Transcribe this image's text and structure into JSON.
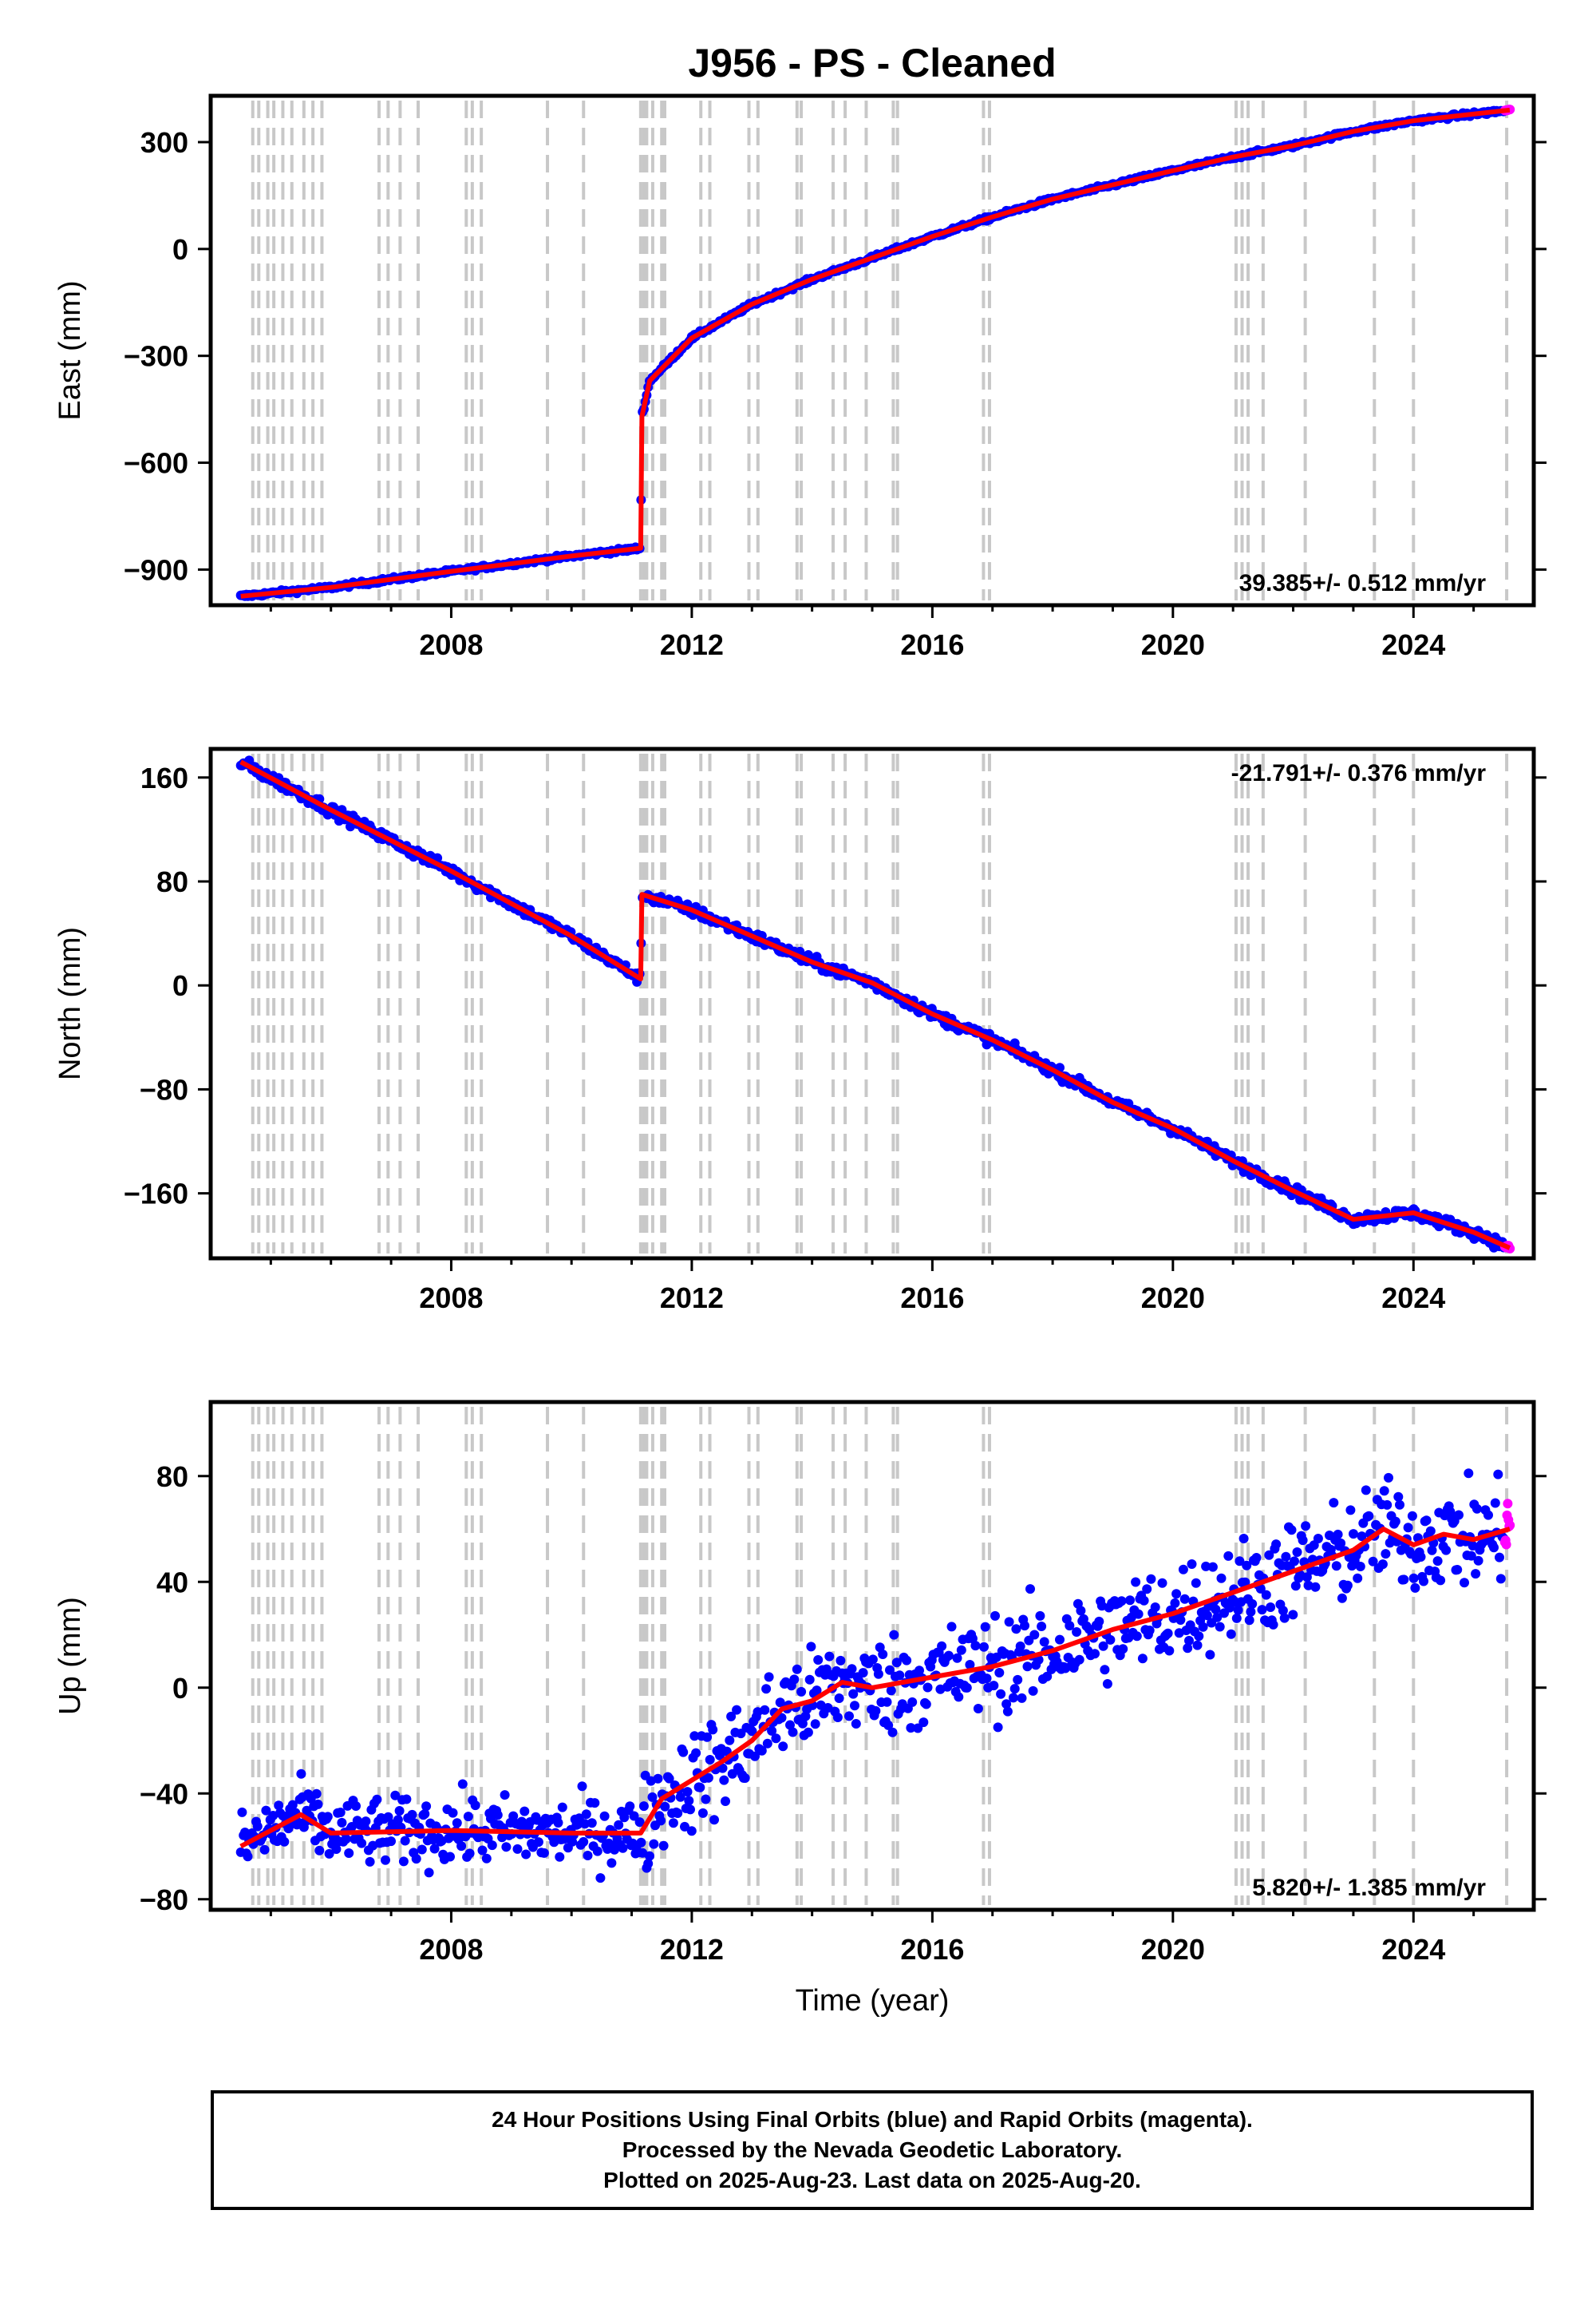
{
  "title": "J956  - PS - Cleaned",
  "xlabel": "Time (year)",
  "x_ticks": [
    2008,
    2012,
    2016,
    2020,
    2024
  ],
  "xlim": [
    2004.0,
    2026.0
  ],
  "colors": {
    "final": "#0000ff",
    "rapid": "#ff00ff",
    "model": "#ff0000",
    "grid": "#c8c8c8",
    "axis": "#000000"
  },
  "event_lines": [
    2004.7,
    2004.8,
    2004.95,
    2005.05,
    2005.2,
    2005.35,
    2005.55,
    2005.7,
    2005.85,
    2006.8,
    2006.95,
    2007.15,
    2007.45,
    2008.25,
    2008.35,
    2008.5,
    2009.6,
    2010.2,
    2011.15,
    2011.2,
    2011.25,
    2011.35,
    2011.5,
    2011.55,
    2012.15,
    2012.3,
    2012.95,
    2013.1,
    2013.75,
    2013.82,
    2014.35,
    2014.55,
    2014.9,
    2015.35,
    2015.42,
    2016.85,
    2016.95,
    2021.05,
    2021.15,
    2021.25,
    2021.5,
    2022.2,
    2023.35,
    2024.0,
    2025.55
  ],
  "panels": [
    {
      "id": "east",
      "ylabel": "East (mm)",
      "rate_label": "39.385+/- 0.512 mm/yr",
      "rate_position": "bottom-right",
      "ylim": [
        -1000,
        430
      ],
      "y_ticks": [
        300,
        0,
        -300,
        -600,
        -900
      ],
      "y_tick_labels": [
        "300",
        "0",
        "−300",
        "−600",
        "−900"
      ],
      "model_points": [
        [
          2004.5,
          -975
        ],
        [
          2006.0,
          -950
        ],
        [
          2008.0,
          -905
        ],
        [
          2010.0,
          -862
        ],
        [
          2011.15,
          -840
        ],
        [
          2011.17,
          -470
        ],
        [
          2011.3,
          -370
        ],
        [
          2012.0,
          -250
        ],
        [
          2013.0,
          -155
        ],
        [
          2014.0,
          -85
        ],
        [
          2015.0,
          -25
        ],
        [
          2016.0,
          35
        ],
        [
          2017.0,
          90
        ],
        [
          2018.0,
          140
        ],
        [
          2019.0,
          180
        ],
        [
          2020.0,
          220
        ],
        [
          2021.0,
          258
        ],
        [
          2022.0,
          290
        ],
        [
          2023.0,
          330
        ],
        [
          2024.0,
          360
        ],
        [
          2025.6,
          390
        ]
      ],
      "jitter": 4
    },
    {
      "id": "north",
      "ylabel": "North (mm)",
      "rate_label": "-21.791+/- 0.376 mm/yr",
      "rate_position": "top-right",
      "ylim": [
        -210,
        182
      ],
      "y_ticks": [
        160,
        80,
        0,
        -80,
        -160
      ],
      "y_tick_labels": [
        "160",
        "80",
        "0",
        "−80",
        "−160"
      ],
      "model_points": [
        [
          2004.5,
          172
        ],
        [
          2006.0,
          135
        ],
        [
          2008.0,
          88
        ],
        [
          2010.0,
          38
        ],
        [
          2011.15,
          5
        ],
        [
          2011.17,
          70
        ],
        [
          2012.0,
          58
        ],
        [
          2013.0,
          38
        ],
        [
          2014.0,
          18
        ],
        [
          2015.0,
          2
        ],
        [
          2015.5,
          -10
        ],
        [
          2016.0,
          -22
        ],
        [
          2017.0,
          -42
        ],
        [
          2018.0,
          -65
        ],
        [
          2019.0,
          -90
        ],
        [
          2020.0,
          -110
        ],
        [
          2021.0,
          -135
        ],
        [
          2022.0,
          -158
        ],
        [
          2023.0,
          -180
        ],
        [
          2024.0,
          -175
        ],
        [
          2025.0,
          -190
        ],
        [
          2025.6,
          -202
        ]
      ],
      "jitter": 3
    },
    {
      "id": "up",
      "ylabel": "Up (mm)",
      "rate_label": "5.820+/- 1.385 mm/yr",
      "rate_position": "bottom-right",
      "ylim": [
        -84,
        108
      ],
      "y_ticks": [
        80,
        40,
        0,
        -40,
        -80
      ],
      "y_tick_labels": [
        "80",
        "40",
        "0",
        "−40",
        "−80"
      ],
      "model_points": [
        [
          2004.5,
          -60
        ],
        [
          2005.5,
          -48
        ],
        [
          2006.0,
          -55
        ],
        [
          2008.0,
          -54
        ],
        [
          2010.0,
          -55
        ],
        [
          2011.15,
          -55
        ],
        [
          2011.5,
          -42
        ],
        [
          2012.0,
          -35
        ],
        [
          2012.5,
          -28
        ],
        [
          2013.0,
          -20
        ],
        [
          2013.5,
          -8
        ],
        [
          2014.0,
          -5
        ],
        [
          2014.5,
          2
        ],
        [
          2015.0,
          0
        ],
        [
          2016.0,
          4
        ],
        [
          2017.0,
          8
        ],
        [
          2018.0,
          14
        ],
        [
          2019.0,
          22
        ],
        [
          2020.0,
          28
        ],
        [
          2021.0,
          36
        ],
        [
          2022.0,
          44
        ],
        [
          2023.0,
          52
        ],
        [
          2023.5,
          60
        ],
        [
          2024.0,
          54
        ],
        [
          2024.5,
          58
        ],
        [
          2025.0,
          56
        ],
        [
          2025.6,
          60
        ]
      ],
      "jitter": 9
    }
  ],
  "footer": {
    "line1": "24 Hour Positions Using Final Orbits (blue) and Rapid Orbits (magenta).",
    "line2": "Processed by the Nevada Geodetic Laboratory.",
    "line3": "Plotted on 2025-Aug-23. Last data on 2025-Aug-20."
  }
}
